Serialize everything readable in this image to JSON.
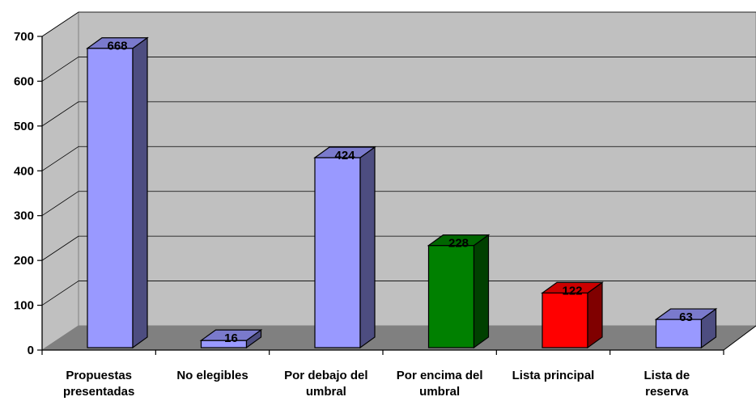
{
  "chart_data": {
    "type": "bar",
    "title": "",
    "xlabel": "",
    "ylabel": "",
    "ylim": [
      0,
      700
    ],
    "yticks": [
      0,
      100,
      200,
      300,
      400,
      500,
      600,
      700
    ],
    "grid": true,
    "three_d": true,
    "categories": [
      [
        "Propuestas",
        "presentadas"
      ],
      [
        "No elegibles"
      ],
      [
        "Por debajo del",
        "umbral"
      ],
      [
        "Por encima del",
        "umbral"
      ],
      [
        "Lista principal"
      ],
      [
        "Lista de",
        "reserva"
      ]
    ],
    "values": [
      668,
      16,
      424,
      228,
      122,
      63
    ],
    "colors": [
      "#9999ff",
      "#9999ff",
      "#9999ff",
      "#008000",
      "#ff0000",
      "#9999ff"
    ],
    "data_labels": [
      "668",
      "16",
      "424",
      "228",
      "122",
      "63"
    ]
  }
}
